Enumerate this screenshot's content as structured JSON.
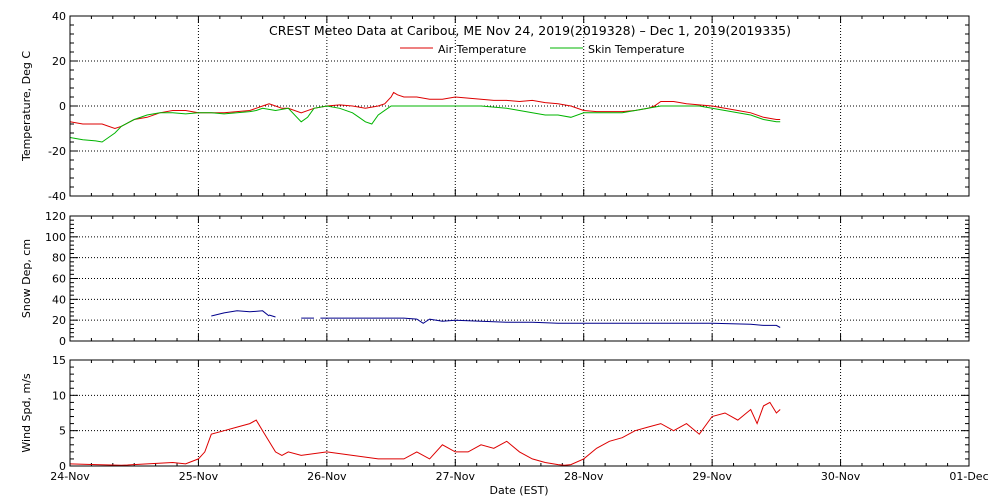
{
  "title": "CREST Meteo Data at Caribou, ME   Nov 24, 2019(2019328) – Dec  1, 2019(2019335)",
  "xlabel": "Date (EST)",
  "x_ticks": [
    "24-Nov",
    "25-Nov",
    "26-Nov",
    "27-Nov",
    "28-Nov",
    "29-Nov",
    "30-Nov",
    "01-Dec"
  ],
  "colors": {
    "air": "#dd0000",
    "skin": "#00b400",
    "snow": "#00008b",
    "wind": "#dd0000"
  },
  "chart_data": [
    {
      "type": "line",
      "ylabel": "Temperature, Deg C",
      "ylim": [
        -40,
        40
      ],
      "yticks": [
        -40,
        -20,
        0,
        20,
        40
      ],
      "xlim": [
        0,
        7
      ],
      "grid": true,
      "legend": "top-center",
      "series": [
        {
          "name": "Air Temperature",
          "x": [
            0,
            0.1,
            0.25,
            0.35,
            0.4,
            0.5,
            0.6,
            0.7,
            0.8,
            0.9,
            1,
            1.1,
            1.2,
            1.3,
            1.4,
            1.5,
            1.55,
            1.6,
            1.65,
            1.7,
            1.8,
            1.9,
            2,
            2.1,
            2.2,
            2.3,
            2.4,
            2.45,
            2.5,
            2.52,
            2.55,
            2.6,
            2.7,
            2.8,
            2.9,
            3,
            3.1,
            3.2,
            3.3,
            3.4,
            3.5,
            3.6,
            3.7,
            3.8,
            3.9,
            4,
            4.1,
            4.2,
            4.3,
            4.4,
            4.5,
            4.55,
            4.6,
            4.7,
            4.8,
            4.9,
            5,
            5.1,
            5.2,
            5.3,
            5.4,
            5.5,
            5.53
          ],
          "y": [
            -7,
            -8,
            -8,
            -10,
            -9,
            -6,
            -5,
            -3,
            -2,
            -2,
            -3,
            -3,
            -3,
            -2.5,
            -2,
            0,
            1,
            0,
            -1,
            -1,
            -3,
            -1,
            0,
            0.5,
            0,
            -1,
            0,
            1,
            4,
            6,
            5,
            4,
            4,
            3,
            3,
            4,
            3.5,
            3,
            2.5,
            2.5,
            2,
            2.5,
            1.5,
            1,
            0,
            -2,
            -2.5,
            -2.5,
            -2.5,
            -2,
            -1,
            0,
            2,
            2,
            1,
            0.5,
            0,
            -1,
            -2,
            -3,
            -5,
            -6,
            -6
          ]
        },
        {
          "name": "Skin Temperature",
          "x": [
            0,
            0.1,
            0.2,
            0.25,
            0.3,
            0.35,
            0.4,
            0.5,
            0.6,
            0.7,
            0.8,
            0.9,
            1,
            1.1,
            1.2,
            1.3,
            1.4,
            1.45,
            1.5,
            1.6,
            1.7,
            1.8,
            1.85,
            1.9,
            2,
            2.1,
            2.2,
            2.25,
            2.3,
            2.35,
            2.4,
            2.5,
            2.6,
            2.7,
            2.8,
            2.9,
            3,
            3.1,
            3.2,
            3.3,
            3.4,
            3.5,
            3.6,
            3.7,
            3.8,
            3.9,
            4,
            4.1,
            4.2,
            4.3,
            4.4,
            4.5,
            4.6,
            4.7,
            4.8,
            4.9,
            5,
            5.1,
            5.2,
            5.3,
            5.4,
            5.5,
            5.53
          ],
          "y": [
            -14,
            -15,
            -15.5,
            -16,
            -14,
            -12,
            -9,
            -6,
            -4,
            -3,
            -3,
            -3.5,
            -3,
            -3,
            -3.5,
            -3,
            -2.5,
            -2,
            -1,
            -2,
            -1,
            -7,
            -5,
            -1,
            0,
            -1,
            -3,
            -5,
            -7,
            -8,
            -4,
            0,
            0,
            0,
            0,
            0,
            0,
            0,
            0,
            -0.5,
            -1,
            -2,
            -3,
            -4,
            -4,
            -5,
            -3,
            -3,
            -3,
            -3,
            -2,
            -1,
            0,
            0,
            0,
            0,
            -1,
            -2,
            -3,
            -4,
            -6,
            -7,
            -7
          ]
        }
      ]
    },
    {
      "type": "line",
      "ylabel": "Snow Dep, cm",
      "ylim": [
        0,
        120
      ],
      "yticks": [
        0,
        20,
        40,
        60,
        80,
        100,
        120
      ],
      "xlim": [
        0,
        7
      ],
      "grid": true,
      "series": [
        {
          "x": [
            1.1,
            1.2,
            1.3,
            1.4,
            1.5,
            1.55
          ],
          "y": [
            24,
            27,
            29,
            28,
            29,
            24
          ]
        },
        {
          "x": [
            1.55,
            1.6
          ],
          "y": [
            25,
            23
          ]
        },
        {
          "x": [
            1.8,
            1.9
          ],
          "y": [
            22,
            22
          ]
        },
        {
          "x": [
            1.95,
            2,
            2.2,
            2.4,
            2.6,
            2.7,
            2.75,
            2.8,
            2.9,
            3,
            3.2,
            3.4,
            3.6,
            3.8,
            4,
            4.5,
            5,
            5.3,
            5.4,
            5.5,
            5.53
          ],
          "y": [
            22,
            22,
            22,
            22,
            22,
            21,
            17,
            21,
            19,
            20,
            19,
            18,
            18,
            17,
            17,
            17,
            17,
            16,
            15,
            15,
            13
          ]
        }
      ]
    },
    {
      "type": "line",
      "ylabel": "Wind Spd, m/s",
      "ylim": [
        0,
        15
      ],
      "yticks": [
        0,
        5,
        10,
        15
      ],
      "xlim": [
        0,
        7
      ],
      "grid": true,
      "series": [
        {
          "x": [
            0,
            0.2,
            0.4,
            0.6,
            0.8,
            0.9,
            1,
            1.05,
            1.1,
            1.2,
            1.3,
            1.4,
            1.45,
            1.5,
            1.6,
            1.65,
            1.7,
            1.8,
            2,
            2.2,
            2.4,
            2.6,
            2.7,
            2.8,
            2.9,
            3,
            3.1,
            3.2,
            3.3,
            3.4,
            3.5,
            3.6,
            3.7,
            3.8,
            3.85,
            3.9,
            4,
            4.1,
            4.2,
            4.3,
            4.4,
            4.5,
            4.6,
            4.7,
            4.8,
            4.9,
            5,
            5.1,
            5.2,
            5.3,
            5.35,
            5.4,
            5.45,
            5.5,
            5.53
          ],
          "y": [
            0.3,
            0.2,
            0.1,
            0.3,
            0.5,
            0.3,
            1,
            2,
            4.5,
            5,
            5.5,
            6,
            6.5,
            5,
            2,
            1.5,
            2,
            1.5,
            2,
            1.5,
            1,
            1,
            2,
            1,
            3,
            2,
            2,
            3,
            2.5,
            3.5,
            2,
            1,
            0.5,
            0.2,
            0.1,
            0.2,
            1,
            2.5,
            3.5,
            4,
            5,
            5.5,
            6,
            5,
            6,
            4.5,
            7,
            7.5,
            6.5,
            8,
            6,
            8.5,
            9,
            7.5,
            8
          ]
        }
      ]
    }
  ]
}
